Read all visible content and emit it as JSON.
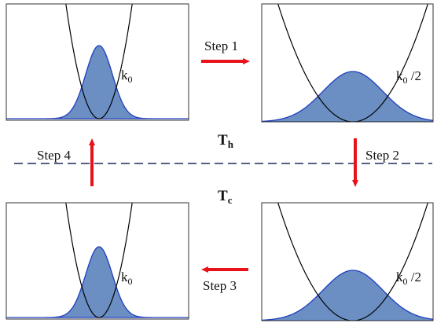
{
  "colors": {
    "fill": "#6b8fc2",
    "distribution_stroke": "#1f3fbf",
    "potential_stroke": "#000000",
    "arrow": "#e8131a",
    "dashed_line": "#1d2a5a",
    "temperature_text": "#8b2b2b",
    "frame": "#333333"
  },
  "panels": [
    {
      "id": "top-left",
      "label_main": "k",
      "label_sub": "0",
      "label_suffix": "",
      "distribution": "narrow"
    },
    {
      "id": "top-right",
      "label_main": "k",
      "label_sub": "0",
      "label_suffix": " /2",
      "distribution": "wide"
    },
    {
      "id": "bottom-left",
      "label_main": "k",
      "label_sub": "0",
      "label_suffix": "",
      "distribution": "narrow"
    },
    {
      "id": "bottom-right",
      "label_main": "k",
      "label_sub": "0",
      "label_suffix": " /2",
      "distribution": "wide"
    }
  ],
  "steps": {
    "step1": "Step 1",
    "step2": "Step 2",
    "step3": "Step 3",
    "step4": "Step 4"
  },
  "temperatures": {
    "hot_main": "T",
    "hot_sub": "h",
    "cold_main": "T",
    "cold_sub": "c"
  }
}
